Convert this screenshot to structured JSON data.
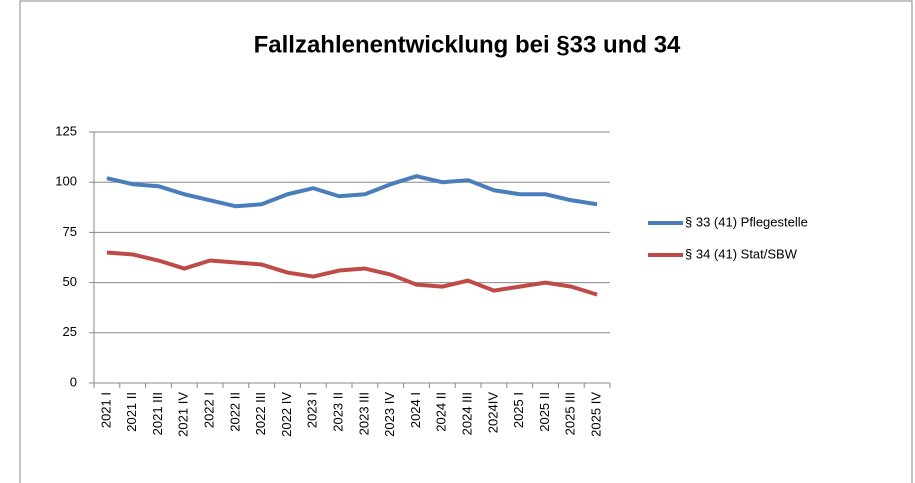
{
  "chart_data": {
    "type": "line",
    "title": "Fallzahlenentwicklung bei §33 und 34",
    "categories": [
      "2021 I",
      "2021 II",
      "2021 III",
      "2021 IV",
      "2022 I",
      "2022 II",
      "2022 III",
      "2022 IV",
      "2023 I",
      "2023 II",
      "2023 III",
      "2023 IV",
      "2024 I",
      "2024 II",
      "2024 III",
      "2024IV",
      "2025 I",
      "2025 II",
      "2025 III",
      "2025 IV"
    ],
    "series": [
      {
        "name": "§ 33 (41) Pflegestelle",
        "color": "#4a7ebb",
        "values": [
          102,
          99,
          98,
          94,
          91,
          88,
          89,
          94,
          97,
          93,
          94,
          99,
          103,
          100,
          101,
          96,
          94,
          94,
          91,
          89
        ]
      },
      {
        "name": "§ 34 (41) Stat/SBW",
        "color": "#be4b48",
        "values": [
          65,
          64,
          61,
          57,
          61,
          60,
          59,
          55,
          53,
          56,
          57,
          54,
          49,
          48,
          51,
          46,
          48,
          50,
          48,
          44
        ]
      }
    ],
    "ylim": [
      0,
      125
    ],
    "yticks": [
      0,
      25,
      50,
      75,
      100,
      125
    ],
    "grid": true,
    "legend": "right"
  }
}
